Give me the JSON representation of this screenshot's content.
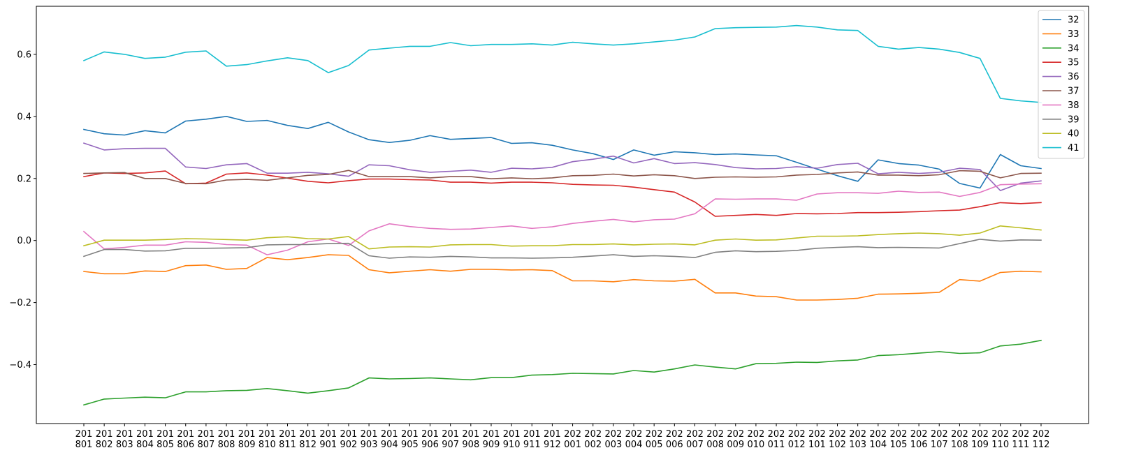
{
  "chart_data": {
    "type": "line",
    "title": "",
    "xlabel": "",
    "ylabel": "",
    "x": [
      "201801",
      "201802",
      "201803",
      "201804",
      "201805",
      "201806",
      "201807",
      "201808",
      "201809",
      "201810",
      "201811",
      "201812",
      "201901",
      "201902",
      "201903",
      "201904",
      "201905",
      "201906",
      "201907",
      "201908",
      "201909",
      "201910",
      "201911",
      "201912",
      "202001",
      "202002",
      "202003",
      "202004",
      "202005",
      "202006",
      "202007",
      "202008",
      "202009",
      "202010",
      "202011",
      "202012",
      "202101",
      "202102",
      "202103",
      "202104",
      "202105",
      "202106",
      "202107",
      "202108",
      "202109",
      "202110",
      "202111",
      "202112"
    ],
    "x_tick_lines": [
      [
        "201",
        "801"
      ],
      [
        "201",
        "802"
      ],
      [
        "201",
        "803"
      ],
      [
        "201",
        "804"
      ],
      [
        "201",
        "805"
      ],
      [
        "201",
        "806"
      ],
      [
        "201",
        "807"
      ],
      [
        "201",
        "808"
      ],
      [
        "201",
        "809"
      ],
      [
        "201",
        "810"
      ],
      [
        "201",
        "811"
      ],
      [
        "201",
        "812"
      ],
      [
        "201",
        "901"
      ],
      [
        "201",
        "902"
      ],
      [
        "201",
        "903"
      ],
      [
        "201",
        "904"
      ],
      [
        "201",
        "905"
      ],
      [
        "201",
        "906"
      ],
      [
        "201",
        "907"
      ],
      [
        "201",
        "908"
      ],
      [
        "201",
        "909"
      ],
      [
        "201",
        "910"
      ],
      [
        "201",
        "911"
      ],
      [
        "201",
        "912"
      ],
      [
        "202",
        "001"
      ],
      [
        "202",
        "002"
      ],
      [
        "202",
        "003"
      ],
      [
        "202",
        "004"
      ],
      [
        "202",
        "005"
      ],
      [
        "202",
        "006"
      ],
      [
        "202",
        "007"
      ],
      [
        "202",
        "008"
      ],
      [
        "202",
        "009"
      ],
      [
        "202",
        "010"
      ],
      [
        "202",
        "011"
      ],
      [
        "202",
        "012"
      ],
      [
        "202",
        "101"
      ],
      [
        "202",
        "102"
      ],
      [
        "202",
        "103"
      ],
      [
        "202",
        "104"
      ],
      [
        "202",
        "105"
      ],
      [
        "202",
        "106"
      ],
      [
        "202",
        "107"
      ],
      [
        "202",
        "108"
      ],
      [
        "202",
        "109"
      ],
      [
        "202",
        "110"
      ],
      [
        "202",
        "111"
      ],
      [
        "202",
        "112"
      ]
    ],
    "y_ticks": [
      -0.4,
      -0.2,
      0.0,
      0.2,
      0.4,
      0.6
    ],
    "y_tick_labels": [
      "−0.4",
      "−0.2",
      "0.0",
      "0.2",
      "0.4",
      "0.6"
    ],
    "ylim": [
      -0.59,
      0.755
    ],
    "grid": false,
    "legend_position": "top-right",
    "series": [
      {
        "name": "32",
        "color": "#1f77b4",
        "values": [
          0.358,
          0.344,
          0.34,
          0.354,
          0.347,
          0.385,
          0.391,
          0.4,
          0.384,
          0.387,
          0.371,
          0.361,
          0.381,
          0.35,
          0.325,
          0.316,
          0.323,
          0.338,
          0.326,
          0.329,
          0.332,
          0.313,
          0.315,
          0.307,
          0.292,
          0.28,
          0.261,
          0.292,
          0.275,
          0.286,
          0.283,
          0.277,
          0.279,
          0.276,
          0.273,
          0.252,
          0.23,
          0.209,
          0.191,
          0.26,
          0.248,
          0.243,
          0.23,
          0.184,
          0.169,
          0.277,
          0.241,
          0.232
        ]
      },
      {
        "name": "33",
        "color": "#ff7f0e",
        "values": [
          -0.1,
          -0.107,
          -0.107,
          -0.098,
          -0.1,
          -0.081,
          -0.079,
          -0.093,
          -0.09,
          -0.055,
          -0.062,
          -0.055,
          -0.046,
          -0.048,
          -0.094,
          -0.104,
          -0.099,
          -0.094,
          -0.099,
          -0.093,
          -0.093,
          -0.095,
          -0.094,
          -0.097,
          -0.13,
          -0.13,
          -0.133,
          -0.126,
          -0.13,
          -0.131,
          -0.125,
          -0.169,
          -0.169,
          -0.179,
          -0.181,
          -0.192,
          -0.192,
          -0.19,
          -0.186,
          -0.173,
          -0.172,
          -0.17,
          -0.167,
          -0.126,
          -0.131,
          -0.103,
          -0.099,
          -0.101
        ]
      },
      {
        "name": "34",
        "color": "#2ca02c",
        "values": [
          -0.53,
          -0.511,
          -0.508,
          -0.505,
          -0.507,
          -0.488,
          -0.488,
          -0.484,
          -0.483,
          -0.477,
          -0.484,
          -0.492,
          -0.484,
          -0.475,
          -0.443,
          -0.446,
          -0.445,
          -0.443,
          -0.446,
          -0.449,
          -0.442,
          -0.442,
          -0.434,
          -0.432,
          -0.428,
          -0.429,
          -0.43,
          -0.419,
          -0.424,
          -0.414,
          -0.401,
          -0.408,
          -0.414,
          -0.397,
          -0.396,
          -0.392,
          -0.393,
          -0.388,
          -0.385,
          -0.371,
          -0.368,
          -0.363,
          -0.358,
          -0.364,
          -0.362,
          -0.34,
          -0.334,
          -0.322
        ]
      },
      {
        "name": "35",
        "color": "#d62728",
        "values": [
          0.206,
          0.218,
          0.216,
          0.218,
          0.224,
          0.183,
          0.185,
          0.214,
          0.218,
          0.211,
          0.201,
          0.191,
          0.186,
          0.193,
          0.198,
          0.198,
          0.196,
          0.195,
          0.188,
          0.188,
          0.185,
          0.188,
          0.188,
          0.186,
          0.181,
          0.179,
          0.178,
          0.172,
          0.164,
          0.156,
          0.124,
          0.078,
          0.081,
          0.084,
          0.081,
          0.087,
          0.086,
          0.087,
          0.09,
          0.09,
          0.091,
          0.093,
          0.096,
          0.098,
          0.109,
          0.122,
          0.119,
          0.122
        ]
      },
      {
        "name": "36",
        "color": "#9467bd",
        "values": [
          0.314,
          0.292,
          0.296,
          0.297,
          0.297,
          0.237,
          0.232,
          0.244,
          0.248,
          0.217,
          0.217,
          0.22,
          0.215,
          0.207,
          0.244,
          0.241,
          0.228,
          0.22,
          0.223,
          0.227,
          0.22,
          0.233,
          0.231,
          0.236,
          0.254,
          0.262,
          0.272,
          0.25,
          0.264,
          0.248,
          0.251,
          0.245,
          0.235,
          0.231,
          0.232,
          0.238,
          0.233,
          0.245,
          0.249,
          0.215,
          0.22,
          0.216,
          0.22,
          0.233,
          0.229,
          0.161,
          0.185,
          0.192
        ]
      },
      {
        "name": "37",
        "color": "#8c564b",
        "values": [
          0.216,
          0.218,
          0.219,
          0.2,
          0.2,
          0.184,
          0.183,
          0.195,
          0.197,
          0.194,
          0.202,
          0.21,
          0.213,
          0.226,
          0.206,
          0.206,
          0.206,
          0.202,
          0.206,
          0.206,
          0.199,
          0.202,
          0.199,
          0.202,
          0.209,
          0.21,
          0.214,
          0.208,
          0.212,
          0.209,
          0.2,
          0.204,
          0.205,
          0.204,
          0.205,
          0.211,
          0.213,
          0.218,
          0.221,
          0.211,
          0.211,
          0.209,
          0.212,
          0.225,
          0.223,
          0.202,
          0.216,
          0.217
        ]
      },
      {
        "name": "38",
        "color": "#e377c2",
        "values": [
          0.029,
          -0.027,
          -0.022,
          -0.015,
          -0.015,
          -0.004,
          -0.006,
          -0.013,
          -0.015,
          -0.046,
          -0.031,
          -0.004,
          0.005,
          -0.016,
          0.031,
          0.054,
          0.045,
          0.039,
          0.036,
          0.037,
          0.042,
          0.047,
          0.039,
          0.044,
          0.055,
          0.062,
          0.068,
          0.06,
          0.067,
          0.069,
          0.086,
          0.134,
          0.133,
          0.134,
          0.134,
          0.13,
          0.15,
          0.154,
          0.154,
          0.152,
          0.159,
          0.155,
          0.156,
          0.142,
          0.155,
          0.18,
          0.182,
          0.183
        ]
      },
      {
        "name": "39",
        "color": "#7f7f7f",
        "values": [
          -0.051,
          -0.029,
          -0.029,
          -0.034,
          -0.033,
          -0.025,
          -0.025,
          -0.024,
          -0.023,
          -0.014,
          -0.013,
          -0.013,
          -0.01,
          -0.009,
          -0.049,
          -0.057,
          -0.053,
          -0.054,
          -0.051,
          -0.053,
          -0.056,
          -0.056,
          -0.057,
          -0.056,
          -0.054,
          -0.05,
          -0.046,
          -0.051,
          -0.049,
          -0.051,
          -0.055,
          -0.038,
          -0.033,
          -0.036,
          -0.035,
          -0.032,
          -0.025,
          -0.022,
          -0.02,
          -0.023,
          -0.022,
          -0.023,
          -0.024,
          -0.01,
          0.004,
          -0.002,
          0.002,
          0.001
        ]
      },
      {
        "name": "40",
        "color": "#bcbd22",
        "values": [
          -0.017,
          0.001,
          0.001,
          0.001,
          0.003,
          0.006,
          0.005,
          0.003,
          0.001,
          0.009,
          0.012,
          0.006,
          0.005,
          0.013,
          -0.027,
          -0.021,
          -0.02,
          -0.021,
          -0.014,
          -0.013,
          -0.013,
          -0.018,
          -0.017,
          -0.017,
          -0.013,
          -0.013,
          -0.011,
          -0.014,
          -0.012,
          -0.011,
          -0.014,
          0.001,
          0.005,
          0.001,
          0.002,
          0.008,
          0.014,
          0.014,
          0.015,
          0.019,
          0.022,
          0.024,
          0.022,
          0.017,
          0.024,
          0.047,
          0.041,
          0.034
        ]
      },
      {
        "name": "41",
        "color": "#17becf",
        "values": [
          0.58,
          0.608,
          0.6,
          0.587,
          0.591,
          0.607,
          0.611,
          0.562,
          0.567,
          0.579,
          0.589,
          0.58,
          0.541,
          0.564,
          0.614,
          0.62,
          0.626,
          0.626,
          0.638,
          0.628,
          0.632,
          0.632,
          0.634,
          0.63,
          0.639,
          0.634,
          0.63,
          0.634,
          0.64,
          0.646,
          0.656,
          0.683,
          0.686,
          0.687,
          0.688,
          0.693,
          0.688,
          0.679,
          0.677,
          0.626,
          0.617,
          0.622,
          0.617,
          0.606,
          0.587,
          0.458,
          0.45,
          0.445
        ]
      }
    ]
  }
}
